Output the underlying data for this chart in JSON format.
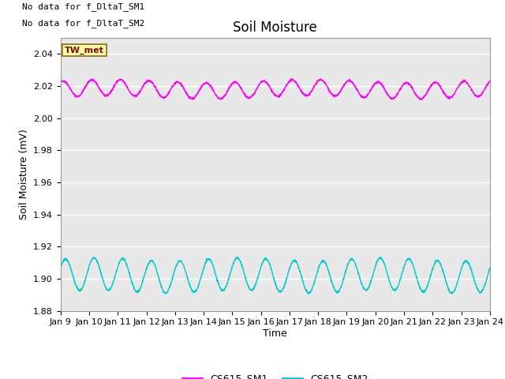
{
  "title": "Soil Moisture",
  "xlabel": "Time",
  "ylabel": "Soil Moisture (mV)",
  "ylim": [
    1.88,
    2.05
  ],
  "yticks": [
    1.88,
    1.9,
    1.92,
    1.94,
    1.96,
    1.98,
    2.0,
    2.02,
    2.04
  ],
  "xlim_days": [
    9,
    24
  ],
  "xtick_labels": [
    "Jan 9",
    "Jan 10",
    "Jan 11",
    "Jan 12",
    "Jan 13",
    "Jan 14",
    "Jan 15",
    "Jan 16",
    "Jan 17",
    "Jan 18",
    "Jan 19",
    "Jan 20",
    "Jan 21",
    "Jan 22",
    "Jan 23",
    "Jan 24"
  ],
  "color_sm1": "#FF00FF",
  "color_sm2": "#00CCCC",
  "sm1_base": 2.018,
  "sm1_amp": 0.005,
  "sm2_base": 1.902,
  "sm2_amp": 0.01,
  "period_hours": 24,
  "no_data_text1": "No data for f_DltaT_SM1",
  "no_data_text2": "No data for f_DltaT_SM2",
  "tw_met_label": "TW_met",
  "legend_sm1": "CS615_SM1",
  "legend_sm2": "CS615_SM2",
  "bg_color": "#E8E8E8",
  "fig_bg": "#FFFFFF",
  "grid_color": "#FFFFFF",
  "title_fontsize": 12,
  "axis_fontsize": 9,
  "tick_fontsize": 8
}
